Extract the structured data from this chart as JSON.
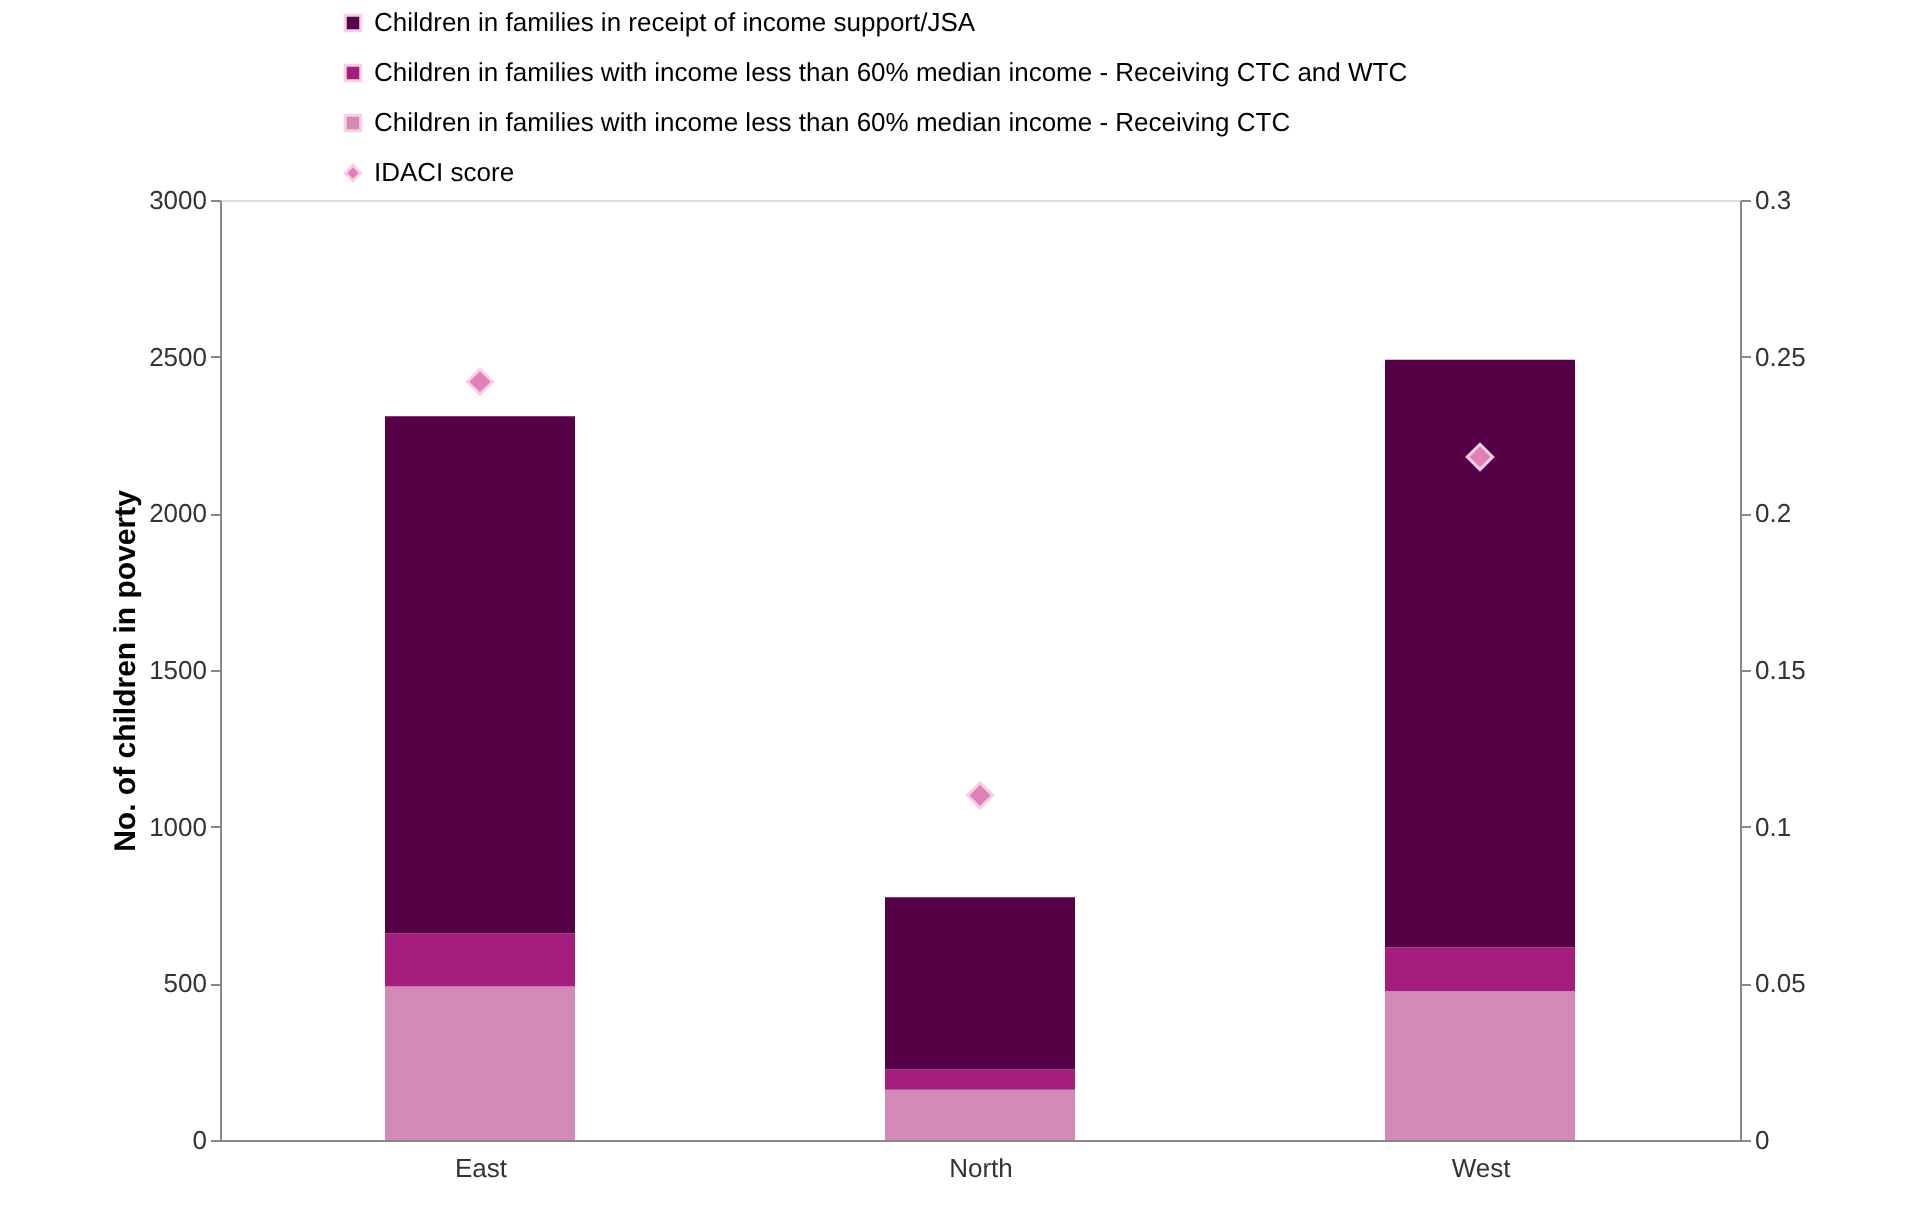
{
  "chart_data": {
    "type": "bar",
    "stacked": true,
    "categories": [
      "East",
      "North",
      "West"
    ],
    "ylabel": "No. of children in poverty",
    "ylim": [
      0,
      3000
    ],
    "yticks": [
      0,
      500,
      1000,
      1500,
      2000,
      2500,
      3000
    ],
    "y2lim": [
      0,
      0.3
    ],
    "y2ticks": [
      0,
      0.05,
      0.1,
      0.15,
      0.2,
      0.25,
      0.3
    ],
    "grid": false,
    "legend": "top",
    "series": [
      {
        "name": "Children in families with income less than 60% median income - Receiving CTC",
        "color": "#d48ab9",
        "values": [
          490,
          160,
          475
        ]
      },
      {
        "name": "Children in families with income less than 60% median income - Receiving CTC and WTC",
        "color": "#a51e7e",
        "values": [
          170,
          65,
          140
        ]
      },
      {
        "name": "Children in families in receipt of income support/JSA",
        "color": "#560047",
        "values": [
          1650,
          550,
          1875
        ]
      },
      {
        "name": "IDACI score",
        "type": "scatter",
        "axis": "y2",
        "marker": "diamond",
        "color": "#e07fb8",
        "values": [
          0.242,
          0.11,
          0.218
        ]
      }
    ]
  }
}
